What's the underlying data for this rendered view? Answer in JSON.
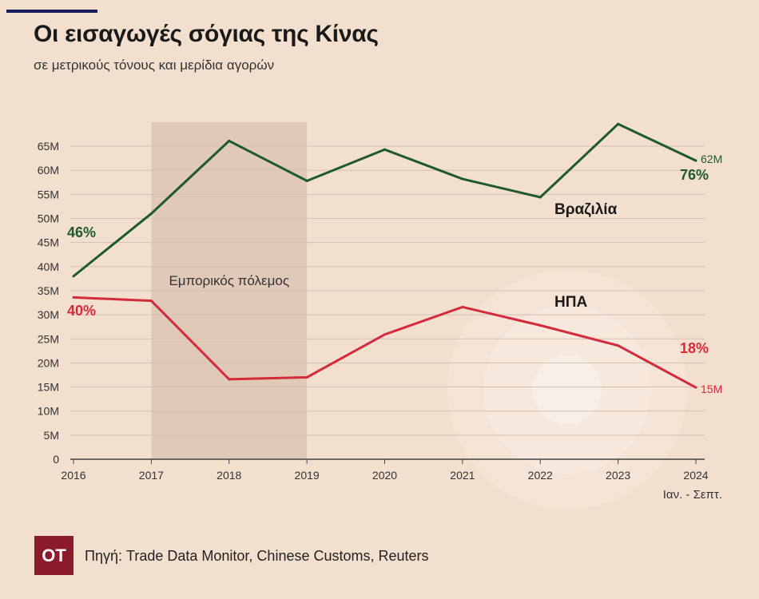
{
  "header": {
    "title": "Οι εισαγωγές σόγιας της Κίνας",
    "subtitle": "σε μετρικούς τόνους και μερίδια αγορών"
  },
  "footer": {
    "logo_text": "OT",
    "source": "Πηγή: Trade Data Monitor, Chinese Customs, Reuters"
  },
  "colors": {
    "background": "#f3dfcd",
    "brazil": "#1e5a2b",
    "usa": "#d42b3a",
    "shade": "#ddc6b4",
    "grid": "#d2c1b2",
    "logo": "#8b1a2c"
  },
  "chart_data": {
    "type": "line",
    "title": "Οι εισαγωγές σόγιας της Κίνας",
    "subtitle": "σε μετρικούς τόνους και μερίδια αγορών",
    "x": [
      "2016",
      "2017",
      "2018",
      "2019",
      "2020",
      "2021",
      "2022",
      "2023",
      "2024"
    ],
    "x_note": "Ιαν. - Σεπτ.",
    "ylim": [
      0,
      70
    ],
    "yticks": [
      0,
      5,
      10,
      15,
      20,
      25,
      30,
      35,
      40,
      45,
      50,
      55,
      60,
      65
    ],
    "ytick_labels": [
      "0",
      "5M",
      "10M",
      "15M",
      "20M",
      "25M",
      "30M",
      "35M",
      "40M",
      "45M",
      "50M",
      "55M",
      "60M",
      "65M"
    ],
    "grid": true,
    "series": [
      {
        "name": "Βραζιλία",
        "color": "#1e5a2b",
        "values": [
          38.0,
          51.0,
          66.1,
          57.8,
          64.3,
          58.2,
          54.4,
          69.6,
          62.0
        ],
        "start_share": "46%",
        "end_share": "76%",
        "end_value_label": "62M"
      },
      {
        "name": "ΗΠΑ",
        "color": "#d42b3a",
        "values": [
          33.6,
          32.9,
          16.6,
          17.0,
          25.9,
          31.6,
          27.8,
          23.6,
          14.9
        ],
        "start_share": "40%",
        "end_share": "18%",
        "end_value_label": "15M"
      }
    ],
    "shaded_region": {
      "label": "Εμπορικός πόλεμος",
      "x_start": "2017",
      "x_end": "2019"
    }
  }
}
